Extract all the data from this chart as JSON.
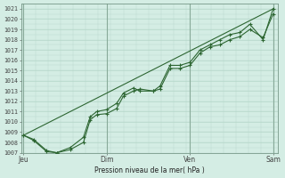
{
  "background_color": "#d4ede4",
  "plot_bg_color": "#d4ede4",
  "grid_color": "#b8d9cc",
  "line_color": "#2d6632",
  "marker_color": "#2d6632",
  "xlabel_text": "Pression niveau de la mer( hPa )",
  "ylim": [
    1007,
    1021.5
  ],
  "yticks": [
    1007,
    1008,
    1009,
    1010,
    1011,
    1012,
    1013,
    1014,
    1015,
    1016,
    1017,
    1018,
    1019,
    1020,
    1021
  ],
  "xtick_labels": [
    "Jeu",
    "Dim",
    "Ven",
    "Sam"
  ],
  "xtick_positions": [
    0.0,
    0.333,
    0.667,
    1.0
  ],
  "vline_positions": [
    0.0,
    0.333,
    0.667,
    1.0
  ],
  "series1_x": [
    0.0,
    0.04,
    0.093,
    0.133,
    0.187,
    0.24,
    0.267,
    0.293,
    0.333,
    0.373,
    0.4,
    0.44,
    0.467,
    0.52,
    0.547,
    0.587,
    0.627,
    0.667,
    0.707,
    0.747,
    0.787,
    0.827,
    0.867,
    0.907,
    0.96,
    1.0
  ],
  "series1_y": [
    1008.7,
    1008.3,
    1007.2,
    1007.0,
    1007.3,
    1008.0,
    1010.2,
    1010.7,
    1010.8,
    1011.3,
    1012.5,
    1013.0,
    1013.2,
    1013.0,
    1013.2,
    1015.2,
    1015.2,
    1015.5,
    1016.7,
    1017.3,
    1017.5,
    1018.0,
    1018.3,
    1019.0,
    1018.2,
    1020.5
  ],
  "series2_x": [
    0.0,
    0.04,
    0.093,
    0.133,
    0.187,
    0.24,
    0.267,
    0.293,
    0.333,
    0.373,
    0.4,
    0.44,
    0.467,
    0.52,
    0.547,
    0.587,
    0.627,
    0.667,
    0.707,
    0.747,
    0.787,
    0.827,
    0.867,
    0.907,
    0.96,
    1.0
  ],
  "series2_y": [
    1008.7,
    1008.2,
    1007.1,
    1007.0,
    1007.5,
    1008.5,
    1010.5,
    1011.0,
    1011.2,
    1011.8,
    1012.8,
    1013.3,
    1013.0,
    1013.0,
    1013.5,
    1015.5,
    1015.5,
    1015.8,
    1017.0,
    1017.5,
    1018.0,
    1018.5,
    1018.7,
    1019.5,
    1018.0,
    1021.0
  ],
  "trend_x": [
    0.0,
    1.0
  ],
  "trend_y": [
    1008.7,
    1021.0
  ]
}
